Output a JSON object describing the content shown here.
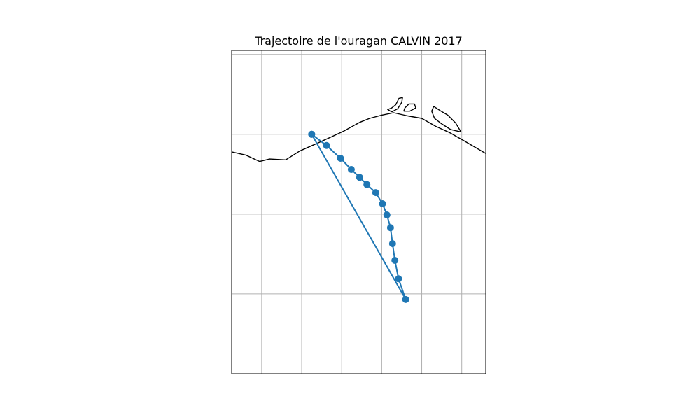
{
  "chart": {
    "title": "Trajectoire de l'ouragan CALVIN 2017"
  },
  "chart_data": {
    "type": "line",
    "title": "Trajectoire de l'ouragan CALVIN 2017",
    "projection": "PlateCarree",
    "lon_range": [
      -99.75,
      -93.4
    ],
    "lat_range": [
      12.0,
      16.05
    ],
    "grid": true,
    "xlabel": "",
    "ylabel": "",
    "track_color": "#1f77b4",
    "coast_color": "#000000",
    "track": [
      {
        "lon": -97.75,
        "lat": 15.0
      },
      {
        "lon": -97.38,
        "lat": 14.86
      },
      {
        "lon": -97.03,
        "lat": 14.7
      },
      {
        "lon": -96.76,
        "lat": 14.56
      },
      {
        "lon": -96.55,
        "lat": 14.46
      },
      {
        "lon": -96.37,
        "lat": 14.37
      },
      {
        "lon": -96.15,
        "lat": 14.27
      },
      {
        "lon": -95.98,
        "lat": 14.13
      },
      {
        "lon": -95.87,
        "lat": 13.99
      },
      {
        "lon": -95.78,
        "lat": 13.83
      },
      {
        "lon": -95.73,
        "lat": 13.63
      },
      {
        "lon": -95.67,
        "lat": 13.42
      },
      {
        "lon": -95.58,
        "lat": 13.19
      },
      {
        "lon": -95.4,
        "lat": 12.93
      },
      {
        "lon": -97.75,
        "lat": 15.0
      }
    ],
    "coastline": [
      {
        "lon": -99.75,
        "lat": 14.78
      },
      {
        "lon": -99.4,
        "lat": 14.74
      },
      {
        "lon": -99.05,
        "lat": 14.66
      },
      {
        "lon": -98.8,
        "lat": 14.69
      },
      {
        "lon": -98.4,
        "lat": 14.68
      },
      {
        "lon": -98.05,
        "lat": 14.79
      },
      {
        "lon": -97.6,
        "lat": 14.89
      },
      {
        "lon": -97.25,
        "lat": 14.97
      },
      {
        "lon": -96.95,
        "lat": 15.04
      },
      {
        "lon": -96.55,
        "lat": 15.15
      },
      {
        "lon": -96.3,
        "lat": 15.2
      },
      {
        "lon": -96.0,
        "lat": 15.24
      },
      {
        "lon": -95.7,
        "lat": 15.27
      },
      {
        "lon": -95.35,
        "lat": 15.23
      },
      {
        "lon": -95.0,
        "lat": 15.2
      },
      {
        "lon": -94.65,
        "lat": 15.1
      },
      {
        "lon": -94.3,
        "lat": 15.02
      },
      {
        "lon": -93.95,
        "lat": 14.92
      },
      {
        "lon": -93.4,
        "lat": 14.76
      }
    ],
    "lagoon_west": [
      {
        "lon": -95.75,
        "lat": 15.28
      },
      {
        "lon": -95.6,
        "lat": 15.32
      },
      {
        "lon": -95.5,
        "lat": 15.4
      },
      {
        "lon": -95.48,
        "lat": 15.46
      },
      {
        "lon": -95.57,
        "lat": 15.45
      },
      {
        "lon": -95.65,
        "lat": 15.37
      },
      {
        "lon": -95.75,
        "lat": 15.33
      },
      {
        "lon": -95.85,
        "lat": 15.31
      },
      {
        "lon": -95.75,
        "lat": 15.28
      }
    ],
    "lagoon_mid": [
      {
        "lon": -95.45,
        "lat": 15.29
      },
      {
        "lon": -95.3,
        "lat": 15.29
      },
      {
        "lon": -95.15,
        "lat": 15.33
      },
      {
        "lon": -95.18,
        "lat": 15.38
      },
      {
        "lon": -95.32,
        "lat": 15.38
      },
      {
        "lon": -95.42,
        "lat": 15.33
      },
      {
        "lon": -95.45,
        "lat": 15.29
      }
    ],
    "lagoon_east": [
      {
        "lon": -94.7,
        "lat": 15.35
      },
      {
        "lon": -94.55,
        "lat": 15.3
      },
      {
        "lon": -94.35,
        "lat": 15.24
      },
      {
        "lon": -94.15,
        "lat": 15.14
      },
      {
        "lon": -94.02,
        "lat": 15.03
      },
      {
        "lon": -94.28,
        "lat": 15.06
      },
      {
        "lon": -94.5,
        "lat": 15.13
      },
      {
        "lon": -94.68,
        "lat": 15.2
      },
      {
        "lon": -94.75,
        "lat": 15.29
      },
      {
        "lon": -94.7,
        "lat": 15.35
      }
    ],
    "gridlines_lon": [
      -99,
      -98,
      -97,
      -96,
      -95,
      -94
    ],
    "gridlines_lat": [
      13,
      14,
      15,
      16
    ]
  }
}
